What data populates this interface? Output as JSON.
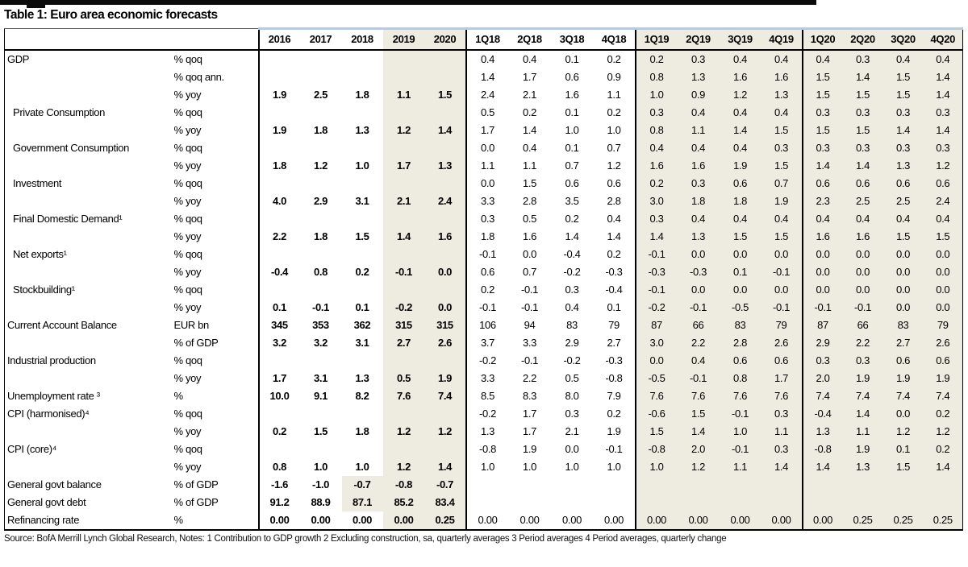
{
  "page": {
    "title": "Table 1: Euro area economic forecasts",
    "source_note": "Source: BofA Merrill Lynch Global Research, Notes:  1 Contribution to GDP growth  2 Excluding  construction,  sa, quarterly averages  3 Period averages 4 Period averages, quarterly change"
  },
  "colors": {
    "shaded_forecast_bg": "#eeebe1",
    "header_tick_blue": "#b7cbe0",
    "rule_black": "#0b0b0b"
  },
  "table": {
    "year_headers": [
      "2016",
      "2017",
      "2018",
      "2019",
      "2020"
    ],
    "quarter_headers": [
      "1Q18",
      "2Q18",
      "3Q18",
      "4Q18",
      "1Q19",
      "2Q19",
      "3Q19",
      "4Q19",
      "1Q20",
      "2Q20",
      "3Q20",
      "4Q20"
    ],
    "shaded_year_start_index": 3,
    "shaded_quarter_start_index": 4,
    "rows": [
      {
        "label": "GDP",
        "indent": false,
        "unit": "% qoq",
        "years": [
          "",
          "",
          "",
          "",
          ""
        ],
        "quarters": [
          "0.4",
          "0.4",
          "0.1",
          "0.2",
          "0.2",
          "0.3",
          "0.4",
          "0.4",
          "0.4",
          "0.3",
          "0.4",
          "0.4"
        ]
      },
      {
        "label": "",
        "indent": false,
        "unit": "% qoq ann.",
        "years": [
          "",
          "",
          "",
          "",
          ""
        ],
        "quarters": [
          "1.4",
          "1.7",
          "0.6",
          "0.9",
          "0.8",
          "1.3",
          "1.6",
          "1.6",
          "1.5",
          "1.4",
          "1.5",
          "1.4"
        ]
      },
      {
        "label": "",
        "indent": false,
        "unit": "% yoy",
        "years": [
          "1.9",
          "2.5",
          "1.8",
          "1.1",
          "1.5"
        ],
        "quarters": [
          "2.4",
          "2.1",
          "1.6",
          "1.1",
          "1.0",
          "0.9",
          "1.2",
          "1.3",
          "1.5",
          "1.5",
          "1.5",
          "1.4"
        ]
      },
      {
        "label": "Private Consumption",
        "indent": true,
        "unit": "% qoq",
        "years": [
          "",
          "",
          "",
          "",
          ""
        ],
        "quarters": [
          "0.5",
          "0.2",
          "0.1",
          "0.2",
          "0.3",
          "0.4",
          "0.4",
          "0.4",
          "0.3",
          "0.3",
          "0.3",
          "0.3"
        ]
      },
      {
        "label": "",
        "indent": false,
        "unit": "% yoy",
        "years": [
          "1.9",
          "1.8",
          "1.3",
          "1.2",
          "1.4"
        ],
        "quarters": [
          "1.7",
          "1.4",
          "1.0",
          "1.0",
          "0.8",
          "1.1",
          "1.4",
          "1.5",
          "1.5",
          "1.5",
          "1.4",
          "1.4"
        ]
      },
      {
        "label": "Government Consumption",
        "indent": true,
        "unit": "% qoq",
        "years": [
          "",
          "",
          "",
          "",
          ""
        ],
        "quarters": [
          "0.0",
          "0.4",
          "0.1",
          "0.7",
          "0.4",
          "0.4",
          "0.4",
          "0.3",
          "0.3",
          "0.3",
          "0.3",
          "0.3"
        ]
      },
      {
        "label": "",
        "indent": false,
        "unit": "% yoy",
        "years": [
          "1.8",
          "1.2",
          "1.0",
          "1.7",
          "1.3"
        ],
        "quarters": [
          "1.1",
          "1.1",
          "0.7",
          "1.2",
          "1.6",
          "1.6",
          "1.9",
          "1.5",
          "1.4",
          "1.4",
          "1.3",
          "1.2"
        ]
      },
      {
        "label": "Investment",
        "indent": true,
        "unit": "% qoq",
        "years": [
          "",
          "",
          "",
          "",
          ""
        ],
        "quarters": [
          "0.0",
          "1.5",
          "0.6",
          "0.6",
          "0.2",
          "0.3",
          "0.6",
          "0.7",
          "0.6",
          "0.6",
          "0.6",
          "0.6"
        ]
      },
      {
        "label": "",
        "indent": false,
        "unit": "% yoy",
        "years": [
          "4.0",
          "2.9",
          "3.1",
          "2.1",
          "2.4"
        ],
        "quarters": [
          "3.3",
          "2.8",
          "3.5",
          "2.8",
          "3.0",
          "1.8",
          "1.8",
          "1.9",
          "2.3",
          "2.5",
          "2.5",
          "2.4"
        ]
      },
      {
        "label": "Final Domestic Demand¹",
        "indent": true,
        "unit": "% qoq",
        "years": [
          "",
          "",
          "",
          "",
          ""
        ],
        "quarters": [
          "0.3",
          "0.5",
          "0.2",
          "0.4",
          "0.3",
          "0.4",
          "0.4",
          "0.4",
          "0.4",
          "0.4",
          "0.4",
          "0.4"
        ]
      },
      {
        "label": "",
        "indent": false,
        "unit": "% yoy",
        "years": [
          "2.2",
          "1.8",
          "1.5",
          "1.4",
          "1.6"
        ],
        "quarters": [
          "1.8",
          "1.6",
          "1.4",
          "1.4",
          "1.4",
          "1.3",
          "1.5",
          "1.5",
          "1.6",
          "1.6",
          "1.5",
          "1.5"
        ]
      },
      {
        "label": "Net exports¹",
        "indent": true,
        "unit": "% qoq",
        "years": [
          "",
          "",
          "",
          "",
          ""
        ],
        "quarters": [
          "-0.1",
          "0.0",
          "-0.4",
          "0.2",
          "-0.1",
          "0.0",
          "0.0",
          "0.0",
          "0.0",
          "0.0",
          "0.0",
          "0.0"
        ]
      },
      {
        "label": "",
        "indent": false,
        "unit": "% yoy",
        "years": [
          "-0.4",
          "0.8",
          "0.2",
          "-0.1",
          "0.0"
        ],
        "quarters": [
          "0.6",
          "0.7",
          "-0.2",
          "-0.3",
          "-0.3",
          "-0.3",
          "0.1",
          "-0.1",
          "0.0",
          "0.0",
          "0.0",
          "0.0"
        ]
      },
      {
        "label": "Stockbuilding¹",
        "indent": true,
        "unit": "% qoq",
        "years": [
          "",
          "",
          "",
          "",
          ""
        ],
        "quarters": [
          "0.2",
          "-0.1",
          "0.3",
          "-0.4",
          "-0.1",
          "0.0",
          "0.0",
          "0.0",
          "0.0",
          "0.0",
          "0.0",
          "0.0"
        ]
      },
      {
        "label": "",
        "indent": false,
        "unit": "% yoy",
        "years": [
          "0.1",
          "-0.1",
          "0.1",
          "-0.2",
          "0.0"
        ],
        "quarters": [
          "-0.1",
          "-0.1",
          "0.4",
          "0.1",
          "-0.2",
          "-0.1",
          "-0.5",
          "-0.1",
          "-0.1",
          "-0.1",
          "0.0",
          "0.0"
        ]
      },
      {
        "label": "Current Account Balance",
        "indent": false,
        "unit": "EUR bn",
        "years": [
          "345",
          "353",
          "362",
          "315",
          "315"
        ],
        "quarters": [
          "106",
          "94",
          "83",
          "79",
          "87",
          "66",
          "83",
          "79",
          "87",
          "66",
          "83",
          "79"
        ]
      },
      {
        "label": "",
        "indent": false,
        "unit": "% of GDP",
        "years": [
          "3.2",
          "3.2",
          "3.1",
          "2.7",
          "2.6"
        ],
        "quarters": [
          "3.7",
          "3.3",
          "2.9",
          "2.7",
          "3.0",
          "2.2",
          "2.8",
          "2.6",
          "2.9",
          "2.2",
          "2.7",
          "2.6"
        ]
      },
      {
        "label": "Industrial production",
        "indent": false,
        "unit": "% qoq",
        "years": [
          "",
          "",
          "",
          "",
          ""
        ],
        "quarters": [
          "-0.2",
          "-0.1",
          "-0.2",
          "-0.3",
          "0.0",
          "0.4",
          "0.6",
          "0.6",
          "0.3",
          "0.3",
          "0.6",
          "0.6"
        ]
      },
      {
        "label": "",
        "indent": false,
        "unit": "% yoy",
        "years": [
          "1.7",
          "3.1",
          "1.3",
          "0.5",
          "1.9"
        ],
        "quarters": [
          "3.3",
          "2.2",
          "0.5",
          "-0.8",
          "-0.5",
          "-0.1",
          "0.8",
          "1.7",
          "2.0",
          "1.9",
          "1.9",
          "1.9"
        ]
      },
      {
        "label": "Unemployment rate ³",
        "indent": false,
        "unit": "%",
        "years": [
          "10.0",
          "9.1",
          "8.2",
          "7.6",
          "7.4"
        ],
        "quarters": [
          "8.5",
          "8.3",
          "8.0",
          "7.9",
          "7.6",
          "7.6",
          "7.6",
          "7.6",
          "7.4",
          "7.4",
          "7.4",
          "7.4"
        ]
      },
      {
        "label": "CPI (harmonised)⁴",
        "indent": false,
        "unit": "% qoq",
        "years": [
          "",
          "",
          "",
          "",
          ""
        ],
        "quarters": [
          "-0.2",
          "1.7",
          "0.3",
          "0.2",
          "-0.6",
          "1.5",
          "-0.1",
          "0.3",
          "-0.4",
          "1.4",
          "0.0",
          "0.2"
        ]
      },
      {
        "label": "",
        "indent": false,
        "unit": "% yoy",
        "years": [
          "0.2",
          "1.5",
          "1.8",
          "1.2",
          "1.2"
        ],
        "quarters": [
          "1.3",
          "1.7",
          "2.1",
          "1.9",
          "1.5",
          "1.4",
          "1.0",
          "1.1",
          "1.3",
          "1.1",
          "1.2",
          "1.2"
        ]
      },
      {
        "label": "CPI (core)⁴",
        "indent": false,
        "unit": "% qoq",
        "years": [
          "",
          "",
          "",
          "",
          ""
        ],
        "quarters": [
          "-0.8",
          "1.9",
          "0.0",
          "-0.1",
          "-0.8",
          "2.0",
          "-0.1",
          "0.3",
          "-0.8",
          "1.9",
          "0.1",
          "0.2"
        ]
      },
      {
        "label": "",
        "indent": false,
        "unit": "% yoy",
        "years": [
          "0.8",
          "1.0",
          "1.0",
          "1.2",
          "1.4"
        ],
        "quarters": [
          "1.0",
          "1.0",
          "1.0",
          "1.0",
          "1.0",
          "1.2",
          "1.1",
          "1.4",
          "1.4",
          "1.3",
          "1.5",
          "1.4"
        ]
      },
      {
        "label": "General govt balance",
        "indent": false,
        "unit": "% of GDP",
        "years": [
          "-1.6",
          "-1.0",
          "-0.7",
          "-0.8",
          "-0.7"
        ],
        "quarters": [
          "",
          "",
          "",
          "",
          "",
          "",
          "",
          "",
          "",
          "",
          "",
          ""
        ],
        "shade_from_year_index": 2
      },
      {
        "label": "General govt debt",
        "indent": false,
        "unit": "% of GDP",
        "years": [
          "91.2",
          "88.9",
          "87.1",
          "85.2",
          "83.4"
        ],
        "quarters": [
          "",
          "",
          "",
          "",
          "",
          "",
          "",
          "",
          "",
          "",
          "",
          ""
        ],
        "shade_from_year_index": 2
      },
      {
        "label": "Refinancing rate",
        "indent": false,
        "unit": "%",
        "years": [
          "0.00",
          "0.00",
          "0.00",
          "0.00",
          "0.25"
        ],
        "quarters": [
          "0.00",
          "0.00",
          "0.00",
          "0.00",
          "0.00",
          "0.00",
          "0.00",
          "0.00",
          "0.00",
          "0.25",
          "0.25",
          "0.25"
        ]
      }
    ]
  }
}
